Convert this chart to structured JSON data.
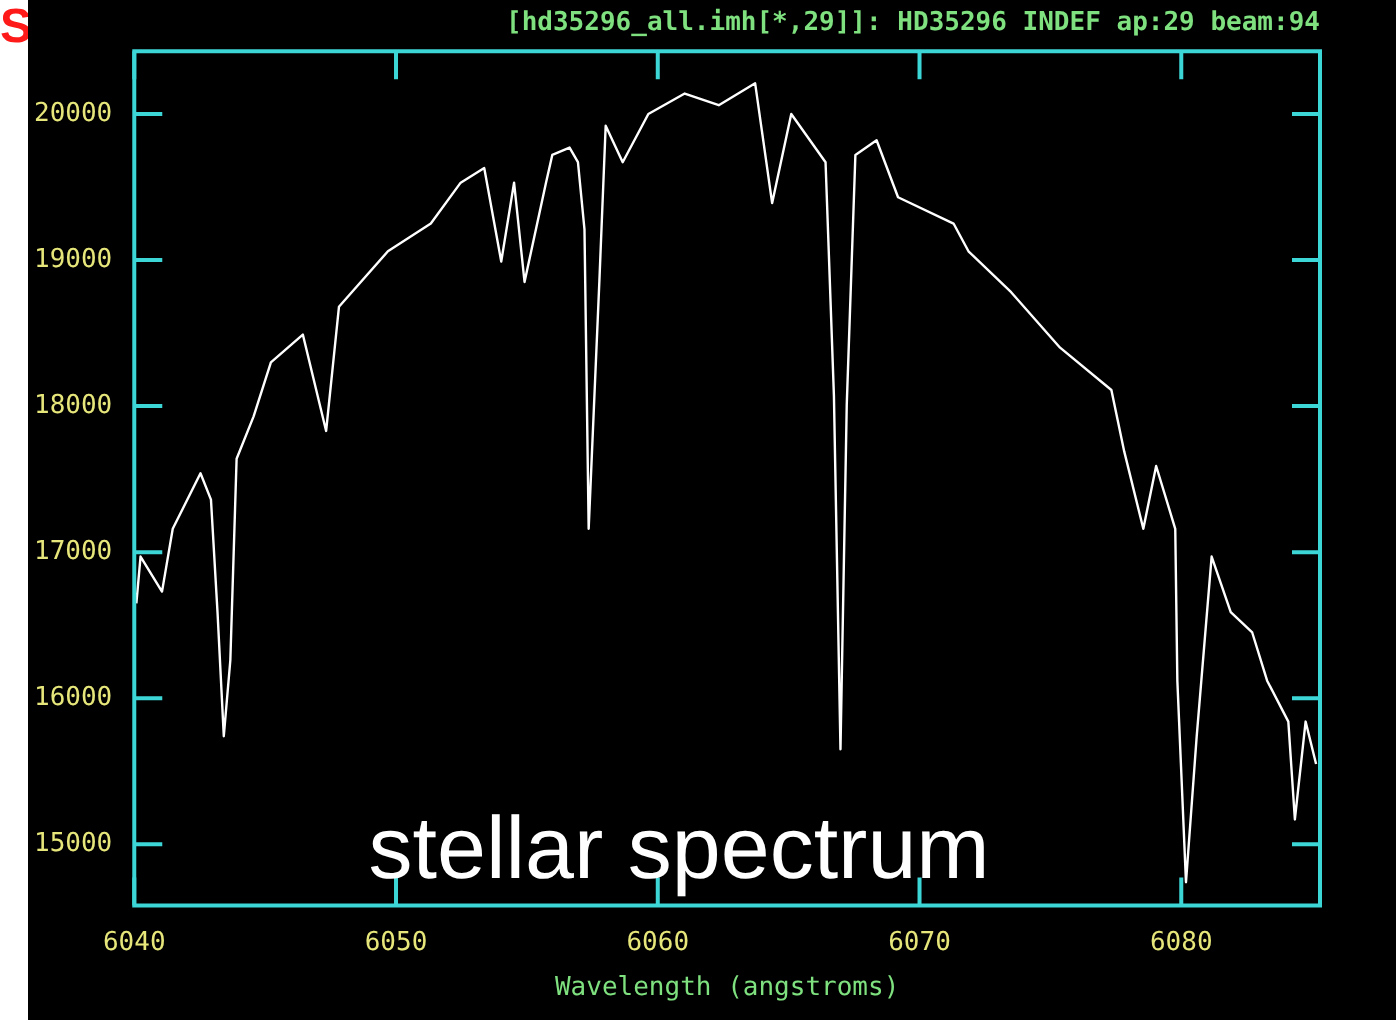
{
  "chart_data": {
    "type": "line",
    "title": "[hd35296_all.imh[*,29]]: HD35296 INDEF ap:29 beam:94",
    "xlabel": "Wavelength (angstroms)",
    "annotations": [
      "stellar spectrum",
      "S"
    ],
    "x": [
      6040.08,
      6040.24,
      6041.06,
      6041.47,
      6042.53,
      6042.93,
      6043.18,
      6043.42,
      6043.67,
      6043.91,
      6044.56,
      6045.22,
      6046.44,
      6047.33,
      6047.82,
      6049.69,
      6051.33,
      6052.47,
      6053.37,
      6054.02,
      6054.51,
      6054.91,
      6055.73,
      6055.97,
      6056.63,
      6056.95,
      6057.2,
      6057.36,
      6057.77,
      6058.01,
      6058.66,
      6059.64,
      6061.03,
      6062.33,
      6063.72,
      6064.37,
      6065.1,
      6066.41,
      6066.73,
      6066.98,
      6067.22,
      6067.55,
      6068.36,
      6069.18,
      6071.3,
      6071.87,
      6073.5,
      6075.37,
      6077.33,
      6077.82,
      6078.55,
      6079.04,
      6079.77,
      6079.85,
      6080.18,
      6080.59,
      6081.16,
      6081.89,
      6082.71,
      6083.28,
      6084.09,
      6084.34,
      6084.75,
      6085.15
    ],
    "series": [
      {
        "color": "#ffffff",
        "values": [
          16650,
          16970,
          16730,
          17160,
          17540,
          17360,
          16590,
          15740,
          16260,
          17640,
          17930,
          18300,
          18490,
          17830,
          18680,
          19060,
          19250,
          19530,
          19630,
          18990,
          19530,
          18850,
          19530,
          19720,
          19770,
          19670,
          19210,
          17160,
          18860,
          19920,
          19670,
          20000,
          20140,
          20060,
          20210,
          19390,
          20000,
          19670,
          18070,
          15650,
          18010,
          19720,
          19820,
          19430,
          19250,
          19060,
          18780,
          18400,
          18110,
          17690,
          17160,
          17590,
          17160,
          16120,
          14740,
          15740,
          16970,
          16590,
          16450,
          16120,
          15840,
          15170,
          15840,
          15550
        ]
      }
    ],
    "xlim": [
      6040,
      6085.3
    ],
    "ylim": [
      14580,
      20430
    ],
    "xticks": [
      6040,
      6050,
      6060,
      6070,
      6080
    ],
    "yticks": [
      15000,
      16000,
      17000,
      18000,
      19000,
      20000
    ],
    "grid": false,
    "legend": false,
    "marker": "none",
    "line_style": "solid"
  }
}
